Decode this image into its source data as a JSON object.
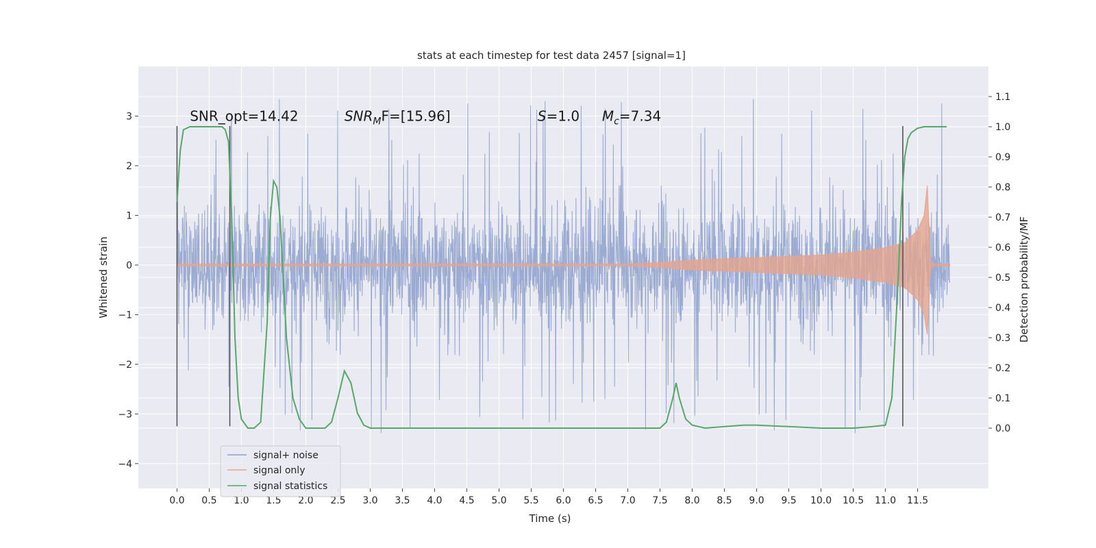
{
  "chart_data": {
    "type": "line",
    "title": "stats at each timestep for test data 2457 [signal=1]",
    "xlabel": "Time (s)",
    "ylabel": "Whitened strain",
    "y2label": "Detection probability/MF",
    "xlim": [
      -0.6,
      12.6
    ],
    "ylim": [
      -4.5,
      4.0
    ],
    "y2lim": [
      -0.2,
      1.2
    ],
    "x_ticks": [
      0.0,
      0.5,
      1.0,
      1.5,
      2.0,
      2.5,
      3.0,
      3.5,
      4.0,
      4.5,
      5.0,
      5.5,
      6.0,
      6.5,
      7.0,
      7.5,
      8.0,
      8.5,
      9.0,
      9.5,
      10.0,
      10.5,
      11.0,
      11.5
    ],
    "x_tick_labels": [
      "0.0",
      "0.5",
      "1.0",
      "1.5",
      "2.0",
      "2.5",
      "3.0",
      "3.5",
      "4.0",
      "4.5",
      "5.0",
      "5.5",
      "6.0",
      "6.5",
      "7.0",
      "7.5",
      "8.0",
      "8.5",
      "9.0",
      "9.5",
      "10.0",
      "10.5",
      "11.0",
      "11.5"
    ],
    "y_ticks": [
      -4,
      -3,
      -2,
      -1,
      0,
      1,
      2,
      3
    ],
    "y_tick_labels": [
      "−4",
      "−3",
      "−2",
      "−1",
      "0",
      "1",
      "2",
      "3"
    ],
    "y2_ticks": [
      0.0,
      0.1,
      0.2,
      0.3,
      0.4,
      0.5,
      0.6,
      0.7,
      0.8,
      0.9,
      1.0,
      1.1
    ],
    "y2_tick_labels": [
      "0.0",
      "0.1",
      "0.2",
      "0.3",
      "0.4",
      "0.5",
      "0.6",
      "0.7",
      "0.8",
      "0.9",
      "1.0",
      "1.1"
    ],
    "grid": true,
    "legend_position": "lower-left",
    "series": [
      {
        "name": "signal+ noise",
        "color": "#8da0cb",
        "kind": "noise-band",
        "x_range": [
          0.0,
          12.0
        ],
        "amplitude": 1.3,
        "peak_range": [
          2.2,
          3.6
        ],
        "trough_range": [
          -2.3,
          -4.1
        ]
      },
      {
        "name": "signal only",
        "color": "#e5a58f",
        "kind": "chirp-envelope",
        "x": [
          0.0,
          7.0,
          7.5,
          8.0,
          9.0,
          10.0,
          10.5,
          11.0,
          11.3,
          11.5,
          11.6,
          11.65,
          11.7,
          11.75,
          12.0
        ],
        "upper": [
          0.02,
          0.02,
          0.05,
          0.1,
          0.15,
          0.2,
          0.26,
          0.35,
          0.45,
          0.7,
          1.0,
          1.6,
          0.1,
          0.02,
          0.02
        ],
        "lower": [
          -0.02,
          -0.02,
          -0.05,
          -0.1,
          -0.15,
          -0.2,
          -0.26,
          -0.35,
          -0.45,
          -0.7,
          -1.0,
          -1.4,
          -0.1,
          -0.02,
          -0.02
        ]
      },
      {
        "name": "signal statistics",
        "color": "#55a868",
        "axis": "right",
        "x": [
          0.0,
          0.05,
          0.1,
          0.2,
          0.3,
          0.5,
          0.7,
          0.75,
          0.8,
          0.85,
          0.9,
          0.95,
          1.0,
          1.1,
          1.2,
          1.3,
          1.4,
          1.45,
          1.5,
          1.55,
          1.6,
          1.7,
          1.8,
          1.9,
          2.0,
          2.1,
          2.3,
          2.4,
          2.5,
          2.6,
          2.7,
          2.8,
          2.9,
          3.0,
          4.0,
          5.0,
          6.0,
          7.0,
          7.5,
          7.6,
          7.7,
          7.75,
          7.8,
          7.9,
          8.0,
          8.2,
          8.5,
          8.8,
          9.0,
          9.5,
          10.0,
          10.5,
          10.8,
          11.0,
          11.1,
          11.2,
          11.25,
          11.3,
          11.35,
          11.4,
          11.5,
          11.6,
          11.8,
          11.95
        ],
        "y": [
          0.75,
          0.92,
          0.99,
          1.0,
          1.0,
          1.0,
          1.0,
          0.99,
          0.95,
          0.7,
          0.3,
          0.1,
          0.03,
          0.0,
          0.0,
          0.02,
          0.35,
          0.7,
          0.82,
          0.8,
          0.7,
          0.3,
          0.1,
          0.03,
          0.0,
          0.0,
          0.0,
          0.02,
          0.1,
          0.19,
          0.15,
          0.05,
          0.01,
          0.0,
          0.0,
          0.0,
          0.0,
          0.0,
          0.0,
          0.02,
          0.1,
          0.15,
          0.1,
          0.03,
          0.01,
          0.0,
          0.005,
          0.01,
          0.01,
          0.005,
          0.0,
          0.0,
          0.005,
          0.01,
          0.1,
          0.5,
          0.75,
          0.9,
          0.96,
          0.98,
          0.995,
          1.0,
          1.0,
          1.0
        ]
      }
    ],
    "vlines": [
      0.0,
      0.82,
      11.27
    ],
    "annotations": [
      {
        "x": 0.2,
        "y": 3.0,
        "text": "SNR_opt=14.42"
      },
      {
        "x": 2.6,
        "y": 3.0,
        "text_main": "SNR",
        "text_sub": "M",
        "text_tail": "F=[15.96]"
      },
      {
        "x": 5.6,
        "y": 3.0,
        "text_main": "S",
        "text_tail": "=1.0"
      },
      {
        "x": 6.6,
        "y": 3.0,
        "text_main": "M",
        "text_sub": "c",
        "text_tail": "=7.34"
      }
    ]
  }
}
